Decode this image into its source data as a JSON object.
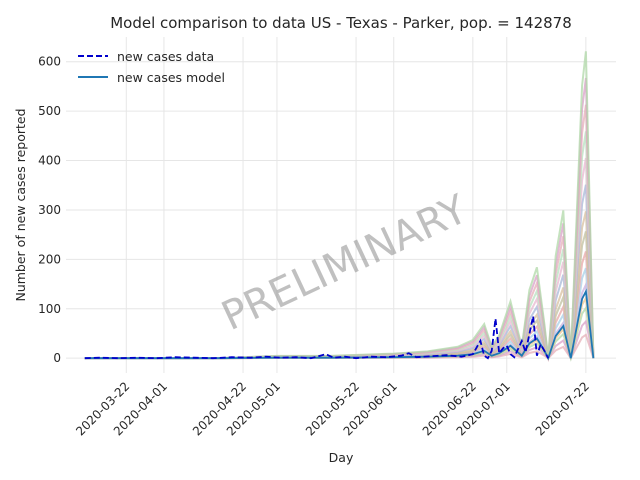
{
  "chart_data": {
    "type": "line",
    "title": "Model comparison to data US - Texas - Parker, pop. = 142878",
    "xlabel": "Day",
    "ylabel": "Number of new cases reported",
    "x_range": [
      "2020-03-06",
      "2020-07-30"
    ],
    "ylim": [
      -30,
      650
    ],
    "y_ticks": [
      0,
      100,
      200,
      300,
      400,
      500,
      600
    ],
    "x_ticks": [
      "2020-03-22",
      "2020-04-01",
      "2020-04-22",
      "2020-05-01",
      "2020-05-22",
      "2020-06-01",
      "2020-06-22",
      "2020-07-01",
      "2020-07-22"
    ],
    "grid": true,
    "legend_position": "top-left",
    "watermark": "PRELIMINARY",
    "series": [
      {
        "name": "new cases data",
        "style": "dashed",
        "color": "#0000cc",
        "points": [
          [
            "2020-03-11",
            0
          ],
          [
            "2020-03-15",
            1
          ],
          [
            "2020-03-20",
            0
          ],
          [
            "2020-03-25",
            1
          ],
          [
            "2020-03-30",
            0
          ],
          [
            "2020-04-04",
            2
          ],
          [
            "2020-04-09",
            1
          ],
          [
            "2020-04-14",
            0
          ],
          [
            "2020-04-19",
            2
          ],
          [
            "2020-04-24",
            1
          ],
          [
            "2020-04-28",
            3
          ],
          [
            "2020-05-02",
            1
          ],
          [
            "2020-05-06",
            2
          ],
          [
            "2020-05-10",
            0
          ],
          [
            "2020-05-14",
            8
          ],
          [
            "2020-05-16",
            1
          ],
          [
            "2020-05-19",
            3
          ],
          [
            "2020-05-22",
            0
          ],
          [
            "2020-05-26",
            3
          ],
          [
            "2020-05-30",
            2
          ],
          [
            "2020-06-03",
            5
          ],
          [
            "2020-06-05",
            10
          ],
          [
            "2020-06-07",
            2
          ],
          [
            "2020-06-11",
            4
          ],
          [
            "2020-06-15",
            6
          ],
          [
            "2020-06-19",
            3
          ],
          [
            "2020-06-22",
            8
          ],
          [
            "2020-06-24",
            35
          ],
          [
            "2020-06-25",
            5
          ],
          [
            "2020-06-26",
            0
          ],
          [
            "2020-06-27",
            15
          ],
          [
            "2020-06-28",
            80
          ],
          [
            "2020-06-29",
            10
          ],
          [
            "2020-06-30",
            20
          ],
          [
            "2020-07-01",
            25
          ],
          [
            "2020-07-02",
            8
          ],
          [
            "2020-07-03",
            2
          ],
          [
            "2020-07-05",
            35
          ],
          [
            "2020-07-06",
            12
          ],
          [
            "2020-07-08",
            85
          ],
          [
            "2020-07-09",
            5
          ],
          [
            "2020-07-10",
            28
          ],
          [
            "2020-07-11",
            15
          ],
          [
            "2020-07-12",
            0
          ]
        ]
      },
      {
        "name": "new cases model",
        "style": "solid",
        "color": "#1f77b4",
        "points": [
          [
            "2020-03-11",
            0
          ],
          [
            "2020-03-20",
            0
          ],
          [
            "2020-04-01",
            0
          ],
          [
            "2020-04-15",
            0
          ],
          [
            "2020-05-01",
            1
          ],
          [
            "2020-05-15",
            1
          ],
          [
            "2020-06-01",
            2
          ],
          [
            "2020-06-10",
            3
          ],
          [
            "2020-06-18",
            5
          ],
          [
            "2020-06-22",
            8
          ],
          [
            "2020-06-25",
            15
          ],
          [
            "2020-06-27",
            5
          ],
          [
            "2020-06-29",
            10
          ],
          [
            "2020-07-02",
            25
          ],
          [
            "2020-07-05",
            5
          ],
          [
            "2020-07-07",
            30
          ],
          [
            "2020-07-09",
            40
          ],
          [
            "2020-07-11",
            15
          ],
          [
            "2020-07-12",
            0
          ],
          [
            "2020-07-14",
            45
          ],
          [
            "2020-07-16",
            65
          ],
          [
            "2020-07-18",
            0
          ],
          [
            "2020-07-21",
            120
          ],
          [
            "2020-07-22",
            135
          ],
          [
            "2020-07-24",
            0
          ]
        ]
      }
    ]
  },
  "ensemble": {
    "colors": [
      "#e6b0b8",
      "#d9a0c8",
      "#b0d8a8",
      "#f0c890",
      "#c8b0e0",
      "#a8d0e8",
      "#e8a8a8",
      "#c0c0a0",
      "#d8c0a0",
      "#a8b8d8",
      "#e8b8d0",
      "#b8e0c0"
    ]
  }
}
